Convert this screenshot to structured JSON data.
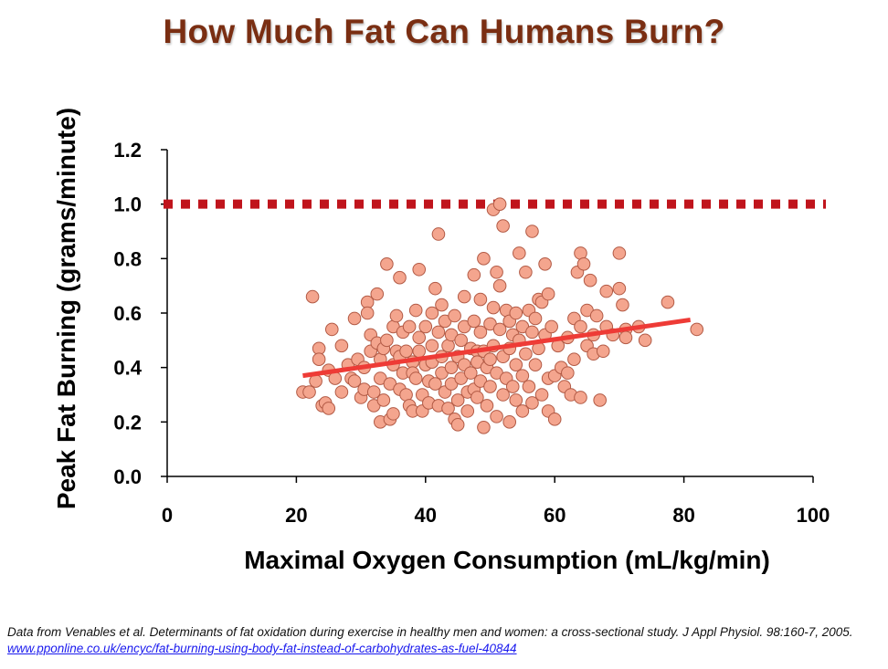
{
  "title": "How Much Fat Can Humans Burn?",
  "citation": {
    "text": "Data from Venables et al. Determinants of fat oxidation during exercise in healthy men and women: a cross-sectional study. J Appl Physiol. 98:160-7, 2005.",
    "link": "www.pponline.co.uk/encyc/fat-burning-using-body-fat-instead-of-carbohydrates-as-fuel-40844"
  },
  "colors": {
    "title": "#7a2e12",
    "point_fill": "#f4a58e",
    "point_stroke": "#b25a45",
    "trend_line": "#ee3b36",
    "reference_line": "#c0141c",
    "link": "#1a1aee"
  },
  "chart_data": {
    "type": "scatter",
    "title": "How Much Fat Can Humans Burn?",
    "xlabel": "Maximal Oxygen Consumption (mL/kg/min)",
    "ylabel": "Peak Fat Burning (grams/minute)",
    "xlim": [
      0,
      100
    ],
    "ylim": [
      0,
      1.2
    ],
    "xticks": [
      0,
      20,
      40,
      60,
      80,
      100
    ],
    "xtick_labels": [
      "0",
      "20",
      "40",
      "60",
      "80",
      "100"
    ],
    "yticks": [
      0,
      0.2,
      0.4,
      0.6,
      0.8,
      1.0,
      1.2
    ],
    "ytick_labels": [
      "0.0",
      "0.2",
      "0.4",
      "0.6",
      "0.8",
      "1.0",
      "1.2"
    ],
    "grid": false,
    "reference_line": {
      "y": 1.0,
      "style": "dotted"
    },
    "trend_line": {
      "x": [
        21,
        81
      ],
      "y": [
        0.37,
        0.575
      ]
    },
    "points": [
      [
        21,
        0.31
      ],
      [
        22,
        0.31
      ],
      [
        22.5,
        0.66
      ],
      [
        23,
        0.35
      ],
      [
        23.5,
        0.47
      ],
      [
        23.5,
        0.43
      ],
      [
        24,
        0.26
      ],
      [
        24.5,
        0.27
      ],
      [
        25,
        0.25
      ],
      [
        25.5,
        0.54
      ],
      [
        25,
        0.39
      ],
      [
        26,
        0.36
      ],
      [
        27,
        0.48
      ],
      [
        27,
        0.31
      ],
      [
        28,
        0.41
      ],
      [
        28.5,
        0.36
      ],
      [
        29,
        0.58
      ],
      [
        29,
        0.35
      ],
      [
        29.5,
        0.43
      ],
      [
        30,
        0.29
      ],
      [
        30.5,
        0.32
      ],
      [
        30.5,
        0.4
      ],
      [
        31,
        0.64
      ],
      [
        31,
        0.6
      ],
      [
        31.5,
        0.52
      ],
      [
        31.5,
        0.46
      ],
      [
        32,
        0.31
      ],
      [
        32,
        0.26
      ],
      [
        32.5,
        0.49
      ],
      [
        32.5,
        0.67
      ],
      [
        33,
        0.36
      ],
      [
        33,
        0.43
      ],
      [
        33,
        0.2
      ],
      [
        33.5,
        0.47
      ],
      [
        33.5,
        0.28
      ],
      [
        34,
        0.78
      ],
      [
        34,
        0.5
      ],
      [
        34.5,
        0.34
      ],
      [
        34.5,
        0.21
      ],
      [
        35,
        0.23
      ],
      [
        35,
        0.41
      ],
      [
        35,
        0.55
      ],
      [
        35.5,
        0.46
      ],
      [
        35.5,
        0.59
      ],
      [
        36,
        0.73
      ],
      [
        36,
        0.44
      ],
      [
        36,
        0.32
      ],
      [
        36.5,
        0.38
      ],
      [
        36.5,
        0.53
      ],
      [
        37,
        0.46
      ],
      [
        37,
        0.3
      ],
      [
        37.5,
        0.26
      ],
      [
        37.5,
        0.55
      ],
      [
        38,
        0.42
      ],
      [
        38,
        0.38
      ],
      [
        38,
        0.24
      ],
      [
        38.5,
        0.61
      ],
      [
        38.5,
        0.36
      ],
      [
        39,
        0.76
      ],
      [
        39,
        0.51
      ],
      [
        39,
        0.46
      ],
      [
        39.5,
        0.3
      ],
      [
        39.5,
        0.24
      ],
      [
        40,
        0.41
      ],
      [
        40,
        0.55
      ],
      [
        40.5,
        0.35
      ],
      [
        40.5,
        0.27
      ],
      [
        41,
        0.6
      ],
      [
        41,
        0.48
      ],
      [
        41,
        0.42
      ],
      [
        41.5,
        0.69
      ],
      [
        41.5,
        0.34
      ],
      [
        42,
        0.89
      ],
      [
        42,
        0.53
      ],
      [
        42,
        0.26
      ],
      [
        42.5,
        0.63
      ],
      [
        42.5,
        0.44
      ],
      [
        42.5,
        0.38
      ],
      [
        43,
        0.31
      ],
      [
        43,
        0.57
      ],
      [
        43.5,
        0.48
      ],
      [
        43.5,
        0.25
      ],
      [
        44,
        0.52
      ],
      [
        44,
        0.4
      ],
      [
        44,
        0.34
      ],
      [
        44.5,
        0.21
      ],
      [
        44.5,
        0.59
      ],
      [
        45,
        0.44
      ],
      [
        45,
        0.28
      ],
      [
        45,
        0.19
      ],
      [
        45.5,
        0.5
      ],
      [
        45.5,
        0.36
      ],
      [
        46,
        0.66
      ],
      [
        46,
        0.41
      ],
      [
        46,
        0.55
      ],
      [
        46.5,
        0.31
      ],
      [
        46.5,
        0.24
      ],
      [
        47,
        0.47
      ],
      [
        47,
        0.38
      ],
      [
        47.5,
        0.74
      ],
      [
        47.5,
        0.57
      ],
      [
        47.5,
        0.32
      ],
      [
        48,
        0.46
      ],
      [
        48,
        0.29
      ],
      [
        48,
        0.42
      ],
      [
        48.5,
        0.65
      ],
      [
        48.5,
        0.53
      ],
      [
        48.5,
        0.35
      ],
      [
        49,
        0.8
      ],
      [
        49,
        0.46
      ],
      [
        49,
        0.18
      ],
      [
        49.5,
        0.4
      ],
      [
        49.5,
        0.26
      ],
      [
        50,
        0.56
      ],
      [
        50,
        0.43
      ],
      [
        50,
        0.33
      ],
      [
        50.5,
        0.98
      ],
      [
        50.5,
        0.62
      ],
      [
        50.5,
        0.48
      ],
      [
        51,
        0.75
      ],
      [
        51,
        0.38
      ],
      [
        51,
        0.22
      ],
      [
        51.5,
        1.0
      ],
      [
        51.5,
        0.7
      ],
      [
        51.5,
        0.54
      ],
      [
        52,
        0.92
      ],
      [
        52,
        0.44
      ],
      [
        52,
        0.3
      ],
      [
        52.5,
        0.61
      ],
      [
        52.5,
        0.36
      ],
      [
        53,
        0.57
      ],
      [
        53,
        0.47
      ],
      [
        53,
        0.2
      ],
      [
        53.5,
        0.52
      ],
      [
        53.5,
        0.33
      ],
      [
        54,
        0.6
      ],
      [
        54,
        0.41
      ],
      [
        54,
        0.28
      ],
      [
        54.5,
        0.82
      ],
      [
        54.5,
        0.5
      ],
      [
        55,
        0.55
      ],
      [
        55,
        0.37
      ],
      [
        55,
        0.24
      ],
      [
        55.5,
        0.75
      ],
      [
        55.5,
        0.45
      ],
      [
        56,
        0.61
      ],
      [
        56,
        0.33
      ],
      [
        56.5,
        0.9
      ],
      [
        56.5,
        0.53
      ],
      [
        56.5,
        0.27
      ],
      [
        57,
        0.58
      ],
      [
        57,
        0.41
      ],
      [
        57.5,
        0.65
      ],
      [
        57.5,
        0.47
      ],
      [
        58,
        0.64
      ],
      [
        58,
        0.3
      ],
      [
        58.5,
        0.78
      ],
      [
        58.5,
        0.52
      ],
      [
        59,
        0.67
      ],
      [
        59,
        0.36
      ],
      [
        59,
        0.24
      ],
      [
        59.5,
        0.55
      ],
      [
        60,
        0.37
      ],
      [
        60,
        0.21
      ],
      [
        60.5,
        0.48
      ],
      [
        61,
        0.4
      ],
      [
        61.5,
        0.33
      ],
      [
        62,
        0.51
      ],
      [
        62,
        0.38
      ],
      [
        62.5,
        0.3
      ],
      [
        63,
        0.58
      ],
      [
        63,
        0.43
      ],
      [
        63.5,
        0.75
      ],
      [
        64,
        0.82
      ],
      [
        64,
        0.55
      ],
      [
        64,
        0.29
      ],
      [
        64.5,
        0.78
      ],
      [
        65,
        0.61
      ],
      [
        65,
        0.48
      ],
      [
        65.5,
        0.72
      ],
      [
        66,
        0.52
      ],
      [
        66,
        0.45
      ],
      [
        66.5,
        0.59
      ],
      [
        67,
        0.28
      ],
      [
        67.5,
        0.46
      ],
      [
        68,
        0.68
      ],
      [
        68,
        0.55
      ],
      [
        69,
        0.52
      ],
      [
        70,
        0.82
      ],
      [
        70,
        0.69
      ],
      [
        70.5,
        0.63
      ],
      [
        71,
        0.54
      ],
      [
        71,
        0.51
      ],
      [
        73,
        0.55
      ],
      [
        74,
        0.5
      ],
      [
        77.5,
        0.64
      ],
      [
        82,
        0.54
      ]
    ]
  }
}
